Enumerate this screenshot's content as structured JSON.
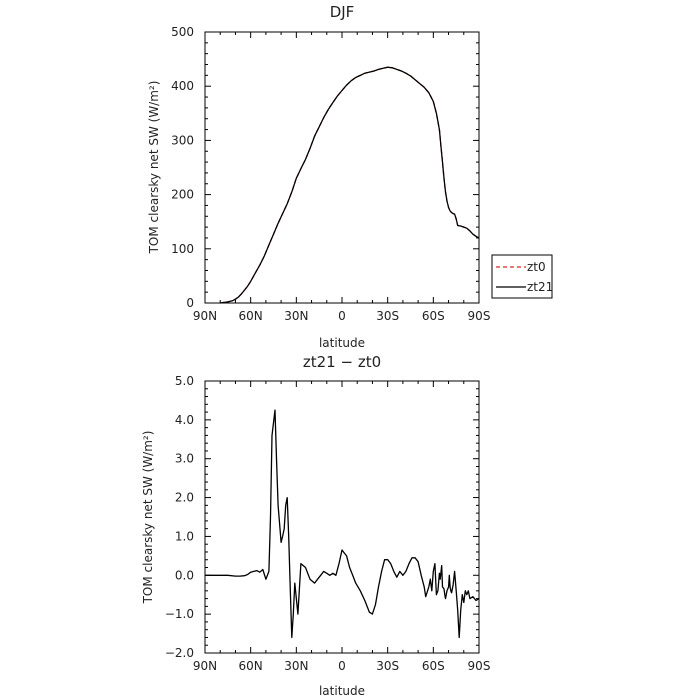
{
  "chart_data": [
    {
      "type": "line",
      "title": "DJF",
      "xlabel": "latitude",
      "ylabel": "TOM clearsky net SW (W/m²)",
      "xlim": [
        90,
        -90
      ],
      "ylim": [
        0,
        500
      ],
      "x_ticks": [
        90,
        60,
        30,
        0,
        -30,
        -60,
        -90
      ],
      "x_tick_labels": [
        "90N",
        "60N",
        "30N",
        "0",
        "30S",
        "60S",
        "90S"
      ],
      "y_ticks": [
        0,
        100,
        200,
        300,
        400,
        500
      ],
      "y_tick_labels": [
        "0",
        "100",
        "200",
        "300",
        "400",
        "500"
      ],
      "grid": false,
      "legend_position": "right",
      "series": [
        {
          "name": "zt0",
          "color": "#d62728",
          "style": "dashed",
          "x": [
            80,
            78,
            75,
            72,
            70,
            68,
            66,
            64,
            62,
            60,
            57,
            54,
            51,
            48,
            45,
            42,
            39,
            36,
            33,
            30,
            27,
            24,
            21,
            18,
            15,
            12,
            9,
            6,
            3,
            0,
            -3,
            -6,
            -9,
            -12,
            -15,
            -18,
            -21,
            -24,
            -27,
            -30,
            -33,
            -36,
            -39,
            -42,
            -45,
            -48,
            -51,
            -54,
            -57,
            -60,
            -62,
            -64,
            -65,
            -66,
            -67,
            -68,
            -69,
            -70,
            -71,
            -72,
            -73,
            -74,
            -75,
            -76,
            -78,
            -80,
            -82,
            -84,
            -86,
            -88,
            -90
          ],
          "y": [
            0,
            1,
            2,
            4,
            7,
            11,
            17,
            24,
            31,
            40,
            55,
            70,
            87,
            107,
            127,
            147,
            165,
            183,
            205,
            230,
            248,
            265,
            285,
            308,
            325,
            342,
            357,
            370,
            382,
            392,
            402,
            410,
            416,
            420,
            424,
            426,
            428,
            431,
            433,
            435,
            434,
            431,
            428,
            424,
            419,
            412,
            405,
            398,
            388,
            372,
            350,
            320,
            290,
            260,
            230,
            205,
            188,
            176,
            170,
            167,
            165,
            164,
            155,
            143,
            142,
            140,
            138,
            133,
            127,
            123,
            120
          ]
        },
        {
          "name": "zt21",
          "color": "#000000",
          "style": "solid",
          "x": [
            80,
            78,
            75,
            72,
            70,
            68,
            66,
            64,
            62,
            60,
            57,
            54,
            51,
            48,
            45,
            42,
            39,
            36,
            33,
            30,
            27,
            24,
            21,
            18,
            15,
            12,
            9,
            6,
            3,
            0,
            -3,
            -6,
            -9,
            -12,
            -15,
            -18,
            -21,
            -24,
            -27,
            -30,
            -33,
            -36,
            -39,
            -42,
            -45,
            -48,
            -51,
            -54,
            -57,
            -60,
            -62,
            -64,
            -65,
            -66,
            -67,
            -68,
            -69,
            -70,
            -71,
            -72,
            -73,
            -74,
            -75,
            -76,
            -78,
            -80,
            -82,
            -84,
            -86,
            -88,
            -90
          ],
          "y": [
            0,
            1,
            2,
            4,
            7,
            11,
            17,
            24,
            31,
            40,
            55,
            70,
            87,
            107,
            127,
            147,
            165,
            183,
            205,
            230,
            248,
            265,
            285,
            308,
            325,
            342,
            357,
            370,
            382,
            392,
            402,
            410,
            416,
            420,
            424,
            426,
            428,
            431,
            433,
            435,
            434,
            431,
            428,
            424,
            419,
            412,
            405,
            398,
            388,
            372,
            350,
            320,
            290,
            260,
            230,
            205,
            188,
            176,
            170,
            167,
            165,
            164,
            155,
            143,
            142,
            140,
            138,
            133,
            127,
            123,
            120
          ]
        }
      ]
    },
    {
      "type": "line",
      "title": "zt21 − zt0",
      "xlabel": "latitude",
      "ylabel": "TOM clearsky net SW (W/m²)",
      "xlim": [
        90,
        -90
      ],
      "ylim": [
        -2.0,
        5.0
      ],
      "x_ticks": [
        90,
        60,
        30,
        0,
        -30,
        -60,
        -90
      ],
      "x_tick_labels": [
        "90N",
        "60N",
        "30N",
        "0",
        "30S",
        "60S",
        "90S"
      ],
      "y_ticks": [
        -2.0,
        -1.0,
        0.0,
        1.0,
        2.0,
        3.0,
        4.0,
        5.0
      ],
      "y_tick_labels": [
        "−2.0",
        "−1.0",
        "0.0",
        "1.0",
        "2.0",
        "3.0",
        "4.0",
        "5.0"
      ],
      "grid": false,
      "series": [
        {
          "name": "zt21",
          "color": "#000000",
          "style": "solid",
          "x": [
            90,
            85,
            80,
            75,
            70,
            67,
            64,
            62,
            60,
            58,
            56,
            54,
            52,
            50,
            48,
            47,
            46,
            44,
            43,
            42,
            40,
            39,
            38,
            37,
            36,
            35,
            34,
            33,
            32,
            31,
            29,
            27,
            24,
            21,
            18,
            16,
            14,
            12,
            10,
            8,
            6,
            4,
            2,
            0,
            -1,
            -3,
            -5,
            -7,
            -9,
            -12,
            -15,
            -18,
            -20,
            -22,
            -24,
            -26,
            -28,
            -30,
            -32,
            -34,
            -36,
            -38,
            -40,
            -42,
            -44,
            -46,
            -48,
            -50,
            -52,
            -54,
            -55,
            -57,
            -58,
            -59,
            -60,
            -61,
            -62,
            -63,
            -64,
            -64.5,
            -65.5,
            -66,
            -67,
            -67.5,
            -68,
            -69,
            -70,
            -70.5,
            -71,
            -71.5,
            -72,
            -73,
            -74,
            -75,
            -76,
            -77,
            -78,
            -79,
            -80,
            -81,
            -82,
            -83,
            -84,
            -86,
            -88,
            -90
          ],
          "y": [
            0.0,
            0.0,
            0.0,
            0.0,
            -0.02,
            -0.02,
            -0.01,
            0.02,
            0.08,
            0.1,
            0.12,
            0.08,
            0.15,
            -0.1,
            0.1,
            1.5,
            3.6,
            4.25,
            3.0,
            1.8,
            0.85,
            1.0,
            1.2,
            1.8,
            2.0,
            1.0,
            -0.3,
            -1.6,
            -1.0,
            -0.2,
            -1.0,
            0.3,
            0.2,
            -0.1,
            -0.2,
            -0.1,
            0.0,
            0.1,
            0.05,
            0.0,
            0.05,
            0.0,
            0.3,
            0.65,
            0.6,
            0.5,
            0.2,
            0.0,
            -0.2,
            -0.4,
            -0.65,
            -0.95,
            -1.0,
            -0.75,
            -0.3,
            0.1,
            0.4,
            0.4,
            0.3,
            0.1,
            -0.05,
            0.1,
            0.0,
            0.1,
            0.3,
            0.45,
            0.45,
            0.35,
            0.0,
            -0.3,
            -0.55,
            -0.3,
            -0.1,
            -0.4,
            0.1,
            0.3,
            -0.5,
            -0.4,
            0.05,
            -0.1,
            0.25,
            -0.3,
            -0.35,
            -0.5,
            -0.6,
            -0.4,
            -0.3,
            0.0,
            -0.3,
            -0.4,
            -0.45,
            -0.25,
            0.1,
            -0.4,
            -0.9,
            -1.6,
            -0.9,
            -0.5,
            -0.7,
            -0.4,
            -0.5,
            -0.4,
            -0.6,
            -0.55,
            -0.65,
            -0.6
          ]
        }
      ]
    }
  ]
}
